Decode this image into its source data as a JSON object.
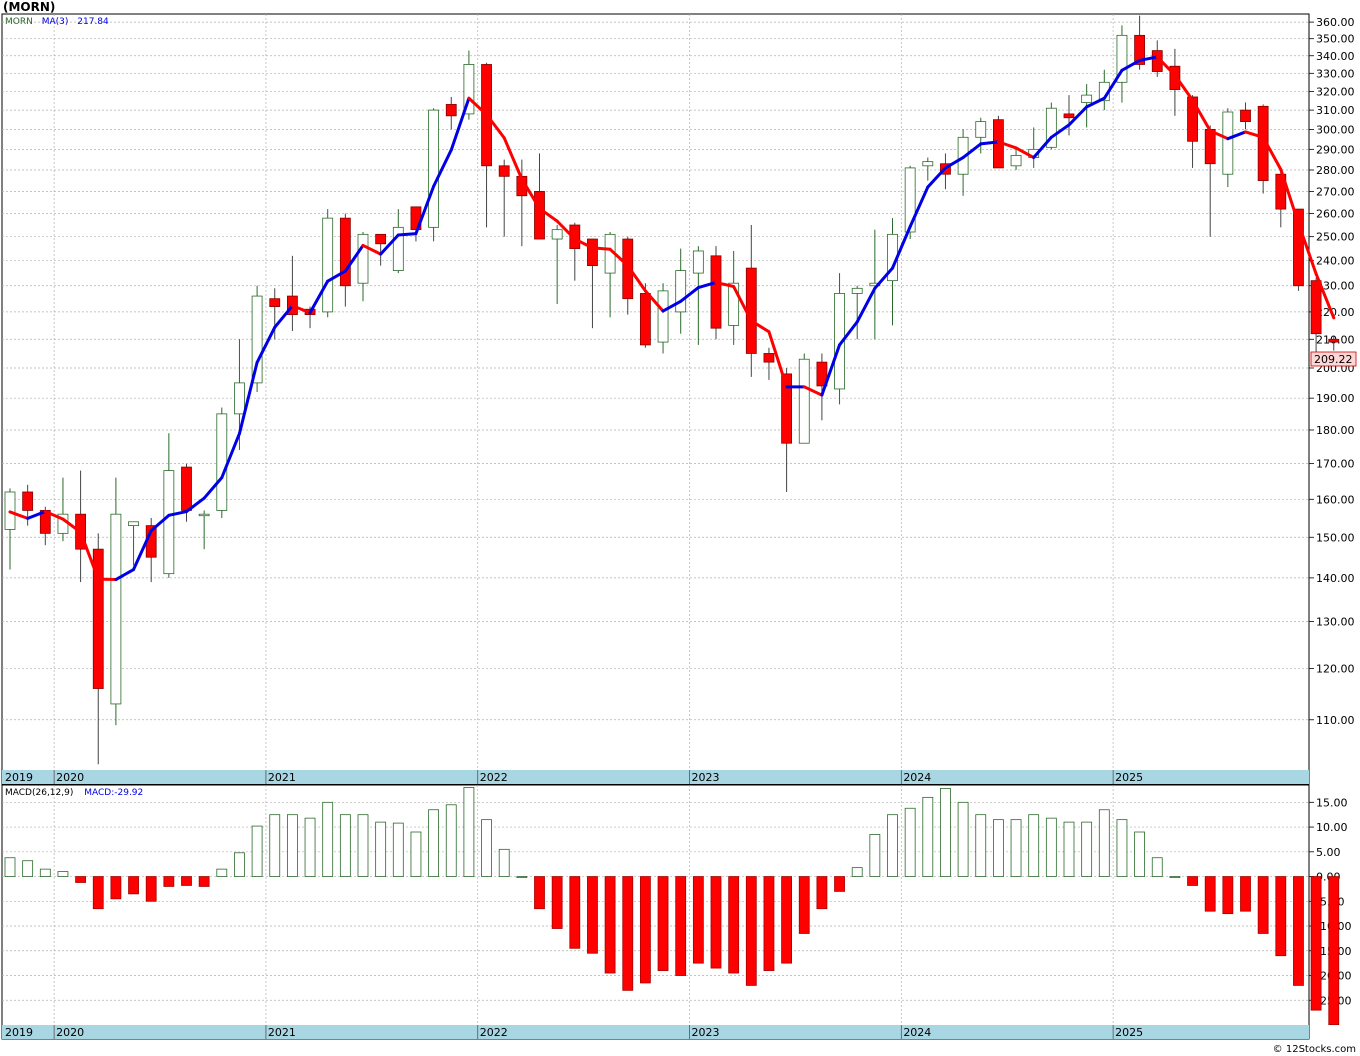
{
  "ticker": "(MORN)",
  "legend_price": {
    "symbol": "MORN",
    "ma_label": "MA(3)",
    "ma_value": "217.84"
  },
  "legend_macd": {
    "label": "MACD(26,12,9)",
    "value_label": "MACD:-29.92"
  },
  "last_price_label": "209.22",
  "footer": "© 12Stocks.com",
  "colors": {
    "up_outline": "#2a6a2a",
    "down_fill": "#ff0000",
    "ma_rising": "#0000e6",
    "ma_falling": "#ff0000",
    "macd_pos": "#2a6a2a",
    "macd_neg": "#ff0000",
    "year_band": "#a9d6e3",
    "grid": "#b0b0b0"
  },
  "year_labels": [
    "2019",
    "2020",
    "2021",
    "2022",
    "2023",
    "2024",
    "2025"
  ],
  "chart_data": [
    {
      "type": "candlestick",
      "title": "(MORN)",
      "scale": "log",
      "ylim": [
        101,
        365
      ],
      "y_ticks": [
        "110.00",
        "120.00",
        "130.00",
        "140.00",
        "150.00",
        "160.00",
        "170.00",
        "180.00",
        "190.00",
        "200.00",
        "210.00",
        "220.00",
        "230.00",
        "240.00",
        "250.00",
        "260.00",
        "270.00",
        "280.00",
        "290.00",
        "300.00",
        "310.00",
        "320.00",
        "330.00",
        "340.00",
        "350.00",
        "360.00"
      ],
      "x_start": "2019-10",
      "x_end": "2025-10",
      "ohlc_monthly": [
        [
          152,
          163,
          142,
          162
        ],
        [
          162,
          164,
          153,
          157
        ],
        [
          157,
          158,
          148,
          151
        ],
        [
          151,
          166,
          149,
          156
        ],
        [
          156,
          168,
          139,
          147
        ],
        [
          147,
          151,
          102,
          116
        ],
        [
          113,
          166,
          109,
          156
        ],
        [
          153,
          154,
          143,
          154
        ],
        [
          153,
          155,
          139,
          145
        ],
        [
          141,
          179,
          140,
          168
        ],
        [
          169,
          170,
          154,
          157
        ],
        [
          156,
          157,
          147,
          156
        ],
        [
          157,
          187,
          155,
          185
        ],
        [
          185,
          210,
          174,
          195
        ],
        [
          195,
          230,
          192,
          226
        ],
        [
          225,
          229,
          210,
          222
        ],
        [
          226,
          242,
          213,
          219
        ],
        [
          221,
          222,
          214,
          219
        ],
        [
          220,
          262,
          218,
          258
        ],
        [
          258,
          260,
          222,
          230
        ],
        [
          231,
          252,
          224,
          251
        ],
        [
          251,
          251,
          238,
          247
        ],
        [
          236,
          262,
          235,
          254
        ],
        [
          263,
          263,
          248,
          253
        ],
        [
          254,
          311,
          248,
          310
        ],
        [
          313,
          317,
          300,
          307
        ],
        [
          308,
          343,
          305,
          335
        ],
        [
          335,
          336,
          254,
          282
        ],
        [
          282,
          285,
          250,
          277
        ],
        [
          277,
          285,
          246,
          268
        ],
        [
          270,
          288,
          250,
          249
        ],
        [
          249,
          255,
          223,
          253
        ],
        [
          255,
          256,
          232,
          245
        ],
        [
          249,
          249,
          214,
          238
        ],
        [
          235,
          252,
          218,
          251
        ],
        [
          249,
          250,
          219,
          225
        ],
        [
          227,
          231,
          207,
          208
        ],
        [
          209,
          231,
          205,
          228
        ],
        [
          220,
          245,
          212,
          236
        ],
        [
          235,
          246,
          208,
          244
        ],
        [
          242,
          246,
          210,
          214
        ],
        [
          215,
          244,
          208,
          231
        ],
        [
          237,
          255,
          197,
          205
        ],
        [
          205,
          207,
          196,
          202
        ],
        [
          198,
          200,
          162,
          176
        ],
        [
          176,
          205,
          176,
          203
        ],
        [
          202,
          205,
          183,
          194
        ],
        [
          193,
          235,
          188,
          227
        ],
        [
          227,
          230,
          210,
          229
        ],
        [
          230,
          253,
          210,
          231
        ],
        [
          232,
          258,
          215,
          251
        ],
        [
          252,
          282,
          249,
          281
        ],
        [
          282,
          286,
          275,
          284
        ],
        [
          283,
          288,
          271,
          278
        ],
        [
          278,
          300,
          268,
          296
        ],
        [
          296,
          306,
          288,
          304
        ],
        [
          305,
          307,
          281,
          281
        ],
        [
          282,
          290,
          280,
          287
        ],
        [
          286,
          301,
          281,
          290
        ],
        [
          291,
          314,
          290,
          311
        ],
        [
          308,
          318,
          297,
          306
        ],
        [
          314,
          324,
          301,
          318
        ],
        [
          315,
          332,
          310,
          325
        ],
        [
          325,
          358,
          314,
          352
        ],
        [
          352,
          364,
          332,
          335
        ],
        [
          343,
          349,
          328,
          331
        ],
        [
          334,
          344,
          307,
          321
        ],
        [
          317,
          318,
          281,
          294
        ],
        [
          300,
          302,
          250,
          283
        ],
        [
          278,
          311,
          272,
          309
        ],
        [
          310,
          314,
          300,
          304
        ],
        [
          312,
          313,
          269,
          275
        ],
        [
          278,
          280,
          254,
          262
        ],
        [
          262,
          262,
          228,
          230
        ],
        [
          232,
          233,
          203,
          212
        ],
        [
          210,
          211,
          206,
          209
        ]
      ],
      "ma3": [
        156.6,
        154.9,
        156.7,
        154.7,
        151.3,
        139.7,
        139.6,
        142.0,
        151.7,
        155.7,
        156.7,
        160.3,
        166.0,
        178.9,
        201.9,
        214.3,
        222.3,
        219.7,
        231.8,
        235.8,
        246.3,
        242.7,
        250.7,
        251.3,
        272.3,
        289.7,
        316.3,
        307.7,
        295.7,
        275.7,
        262.3,
        256.7,
        249.0,
        245.3,
        244.7,
        238.0,
        228.0,
        220.3,
        224.0,
        229.3,
        231.3,
        229.7,
        216.7,
        212.7,
        193.7,
        193.7,
        191.0,
        208.0,
        216.3,
        229.0,
        237.0,
        254.3,
        272.0,
        281.0,
        286.0,
        292.7,
        293.7,
        290.7,
        286.0,
        296.0,
        302.3,
        311.7,
        316.3,
        331.7,
        337.3,
        339.3,
        329.0,
        315.3,
        299.3,
        295.3,
        298.7,
        296.0,
        280.3,
        255.7,
        234.7,
        217.8
      ],
      "macd_hist": [
        3.8,
        3.2,
        1.5,
        1.0,
        -1.2,
        -6.5,
        -4.5,
        -3.5,
        -5.0,
        -2.0,
        -1.8,
        -2.0,
        1.5,
        4.8,
        10.2,
        12.5,
        12.5,
        11.8,
        15.0,
        12.5,
        12.5,
        11.0,
        10.8,
        9.0,
        13.5,
        14.5,
        18.0,
        11.5,
        5.5,
        0.0,
        -6.5,
        -10.5,
        -14.5,
        -15.5,
        -19.5,
        -23.0,
        -21.5,
        -19.0,
        -20.0,
        -17.5,
        -18.5,
        -19.5,
        -22.0,
        -19.0,
        -17.5,
        -11.5,
        -6.5,
        -3.0,
        1.8,
        8.5,
        12.5,
        13.8,
        16.0,
        17.8,
        15.0,
        12.5,
        11.5,
        11.5,
        12.5,
        11.8,
        11.0,
        11.0,
        13.5,
        11.5,
        9.0,
        3.8,
        0.0,
        -1.8,
        -7.0,
        -7.5,
        -7.0,
        -11.5,
        -16.0,
        -22.0,
        -27.0,
        -29.92
      ],
      "macd_ylim": [
        -30,
        18.5
      ],
      "macd_ticks": [
        "15.00",
        "10.00",
        "5.00",
        "0.00",
        "-5.00",
        "-10.00",
        "-15.00",
        "-20.00",
        "-25.00"
      ]
    }
  ]
}
